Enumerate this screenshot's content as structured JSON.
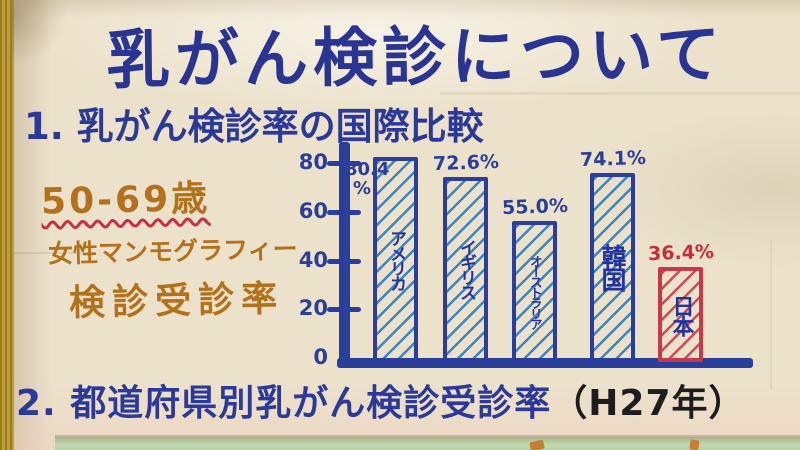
{
  "poster": {
    "title": "乳がん検診について",
    "section1_heading": "1. 乳がん検診率の国際比較",
    "side_note": {
      "line1": "50-69歳",
      "line2": "女性マンモグラフィー",
      "line3": "検診受診率",
      "text_color": "#b4711c",
      "underline_color": "#c9303f"
    },
    "section2_heading": "2. 都道府県別乳がん検診受診率",
    "section2_year": "（H27年）",
    "colors": {
      "marker_blue": "#2a3f9b",
      "hatch_blue": "#3c85c0",
      "highlight_red": "#c8374a",
      "note_orange": "#b4711c",
      "paper": "#ece2cb",
      "wall": "#b6982f",
      "second_poster_green": "#c2d6ae"
    }
  },
  "chart_data": {
    "type": "bar",
    "title": "乳がん検診率の国際比較",
    "subtitle": "50-69歳 女性マンモグラフィー検診受診率",
    "categories": [
      "アメリカ",
      "イギリス",
      "オーストラリア",
      "韓国",
      "日本"
    ],
    "values": [
      80.4,
      72.6,
      55.0,
      74.1,
      36.4
    ],
    "value_labels": [
      "80.4%",
      "72.6%",
      "55.0%",
      "74.1%",
      "36.4%"
    ],
    "unit": "%",
    "xlabel": "",
    "ylabel": "",
    "yticks": [
      0,
      20,
      40,
      60,
      80
    ],
    "ylim": [
      0,
      88
    ],
    "grid": false,
    "legend": "none",
    "bar_colors": [
      "#2a3f9b",
      "#2a3f9b",
      "#2a3f9b",
      "#2a3f9b",
      "#c8374a"
    ],
    "hatch_colors": [
      "#3c85c0",
      "#3c85c0",
      "#3c85c0",
      "#3c85c0",
      "#d04a55"
    ],
    "value_label_colors": [
      "#2a3f9b",
      "#2a3f9b",
      "#2a3f9b",
      "#2a3f9b",
      "#cc2936"
    ],
    "bar_name_color": "#2233a0",
    "axis_color": "#2a3f9b"
  }
}
